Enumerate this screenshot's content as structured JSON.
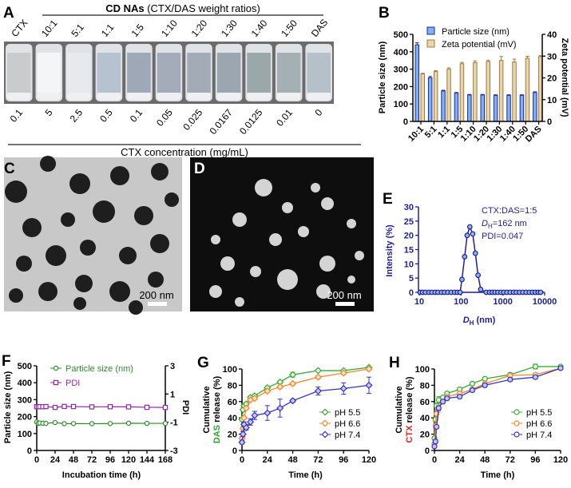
{
  "panels": {
    "A": {
      "label": "A",
      "header_bold": "CD NAs",
      "header_rest": " (CTX/DAS weight ratios)",
      "samples": [
        "CTX",
        "10:1",
        "5:1",
        "1:1",
        "1:5",
        "1:10",
        "1:20",
        "1:30",
        "1:40",
        "1:50",
        "DAS"
      ],
      "concentrations": [
        "0.1",
        "5",
        "2.5",
        "0.5",
        "0.1",
        "0.05",
        "0.025",
        "0.0167",
        "0.0125",
        "0.01",
        "0"
      ],
      "vial_colors": [
        "#c9cbcc",
        "#f3f5f7",
        "#e6eaee",
        "#b7c2d0",
        "#9ea8b6",
        "#a3acb8",
        "#a2abb6",
        "#9ca6b0",
        "#9aa8aa",
        "#a5b0b4",
        "#b6c0c8"
      ],
      "xlabel": "CTX concentration (mg/mL)"
    },
    "C": {
      "label": "C",
      "scale_bar": "200 nm"
    },
    "D": {
      "label": "D",
      "scale_bar": "200 nm"
    }
  },
  "chart_data": [
    {
      "panel": "B",
      "type": "bar",
      "categories": [
        "10:1",
        "5:1",
        "1:1",
        "1:5",
        "1:10",
        "1:20",
        "1:30",
        "1:40",
        "1:50",
        "DAS"
      ],
      "series": [
        {
          "name": "Particle size (nm)",
          "axis": "left",
          "values": [
            440,
            250,
            175,
            163,
            152,
            152,
            150,
            150,
            150,
            166
          ],
          "errors": [
            12,
            8,
            4,
            3,
            3,
            3,
            3,
            3,
            3,
            4
          ],
          "color": "#80b0f2",
          "edge": "#1c2a9c"
        },
        {
          "name": "Zeta potential (mV)",
          "axis": "right",
          "values": [
            21.8,
            22.9,
            24,
            26.5,
            27,
            27.5,
            28,
            27.3,
            29,
            29.8
          ],
          "errors": [
            0.3,
            0.4,
            0.6,
            0.6,
            0.8,
            0.6,
            1.8,
            1.3,
            0.9,
            0.4
          ],
          "color": "#e9d5ab",
          "edge": "#9d7b42"
        }
      ],
      "ylabel": "Particle size (nm)",
      "ylim": [
        0,
        500
      ],
      "yticks": [
        0,
        100,
        200,
        300,
        400,
        500
      ],
      "y2label": "Zeta potential (mV)",
      "y2lim": [
        0,
        40
      ],
      "y2ticks": [
        0,
        10,
        20,
        30,
        40
      ],
      "legend": "top"
    },
    {
      "panel": "E",
      "type": "line",
      "x_scale": "log",
      "x": [
        10.5,
        12,
        14,
        17,
        20,
        24,
        28,
        34,
        40,
        48,
        58,
        70,
        82,
        95,
        105,
        122,
        140,
        162,
        190,
        220,
        255,
        295,
        400,
        480,
        560,
        650,
        760,
        900,
        1050,
        1250,
        1500,
        1800,
        2100,
        2500,
        3000,
        3600,
        4300,
        5100,
        6000,
        7000,
        8000
      ],
      "series": [
        {
          "values": [
            0,
            0,
            0,
            0,
            0,
            0,
            0,
            0,
            0,
            0,
            0,
            0,
            0,
            0,
            4.5,
            12.5,
            20,
            23,
            20.5,
            13.7,
            6,
            1,
            0,
            0,
            0,
            0,
            0,
            0,
            0,
            0,
            0,
            0,
            0,
            0,
            0,
            0,
            0,
            0,
            0,
            0,
            0
          ],
          "color": "#1f1f8f",
          "marker_fill": "#8fb2f2"
        }
      ],
      "xlabel_main": "D",
      "xlabel_sub": "H",
      "xlabel_rest": " (nm)",
      "xlim": [
        10,
        10000
      ],
      "xticks": [
        "10",
        "100",
        "1000",
        "10000"
      ],
      "ylabel": "Intensity (%)",
      "ylim": [
        0,
        30
      ],
      "yticks": [
        0,
        5,
        10,
        15,
        20,
        25,
        30
      ],
      "annotation": {
        "line1": "CTX:DAS=1:5",
        "line2_main": "D",
        "line2_sub": "H",
        "line2_rest": "=162 nm",
        "line3": "PDI=0.047"
      }
    },
    {
      "panel": "F",
      "type": "line",
      "x": [
        0,
        2,
        4,
        8,
        12,
        24,
        36,
        48,
        72,
        96,
        120,
        144,
        168
      ],
      "series": [
        {
          "name": "Particle size (nm)",
          "axis": "left",
          "values": [
            168,
            160,
            162,
            161,
            160,
            165,
            158,
            159,
            158,
            159,
            161,
            160,
            160
          ],
          "color": "#2e8b2e",
          "marker": "circle"
        },
        {
          "name": "PDI",
          "axis": "right",
          "values": [
            0.1,
            0.1,
            0.1,
            0.1,
            0.11,
            0.05,
            0.12,
            0.11,
            0.09,
            0.1,
            0.09,
            0.06,
            0.05
          ],
          "color": "#8e2aa0",
          "marker": "square"
        }
      ],
      "xlabel": "Incubation time (h)",
      "xlim": [
        0,
        168
      ],
      "xticks": [
        0,
        24,
        48,
        72,
        96,
        120,
        144,
        168
      ],
      "ylabel": "Particle size (nm)",
      "ylim": [
        0,
        500
      ],
      "yticks": [
        0,
        100,
        200,
        300,
        400,
        500
      ],
      "y2label": "PDI",
      "y2lim": [
        -3,
        3
      ],
      "y2ticks": [
        -3,
        -1,
        1,
        3
      ],
      "legend": "top-left"
    },
    {
      "panel": "G",
      "type": "line",
      "x": [
        0,
        1,
        2,
        4,
        8,
        12,
        24,
        36,
        48,
        72,
        96,
        120
      ],
      "series": [
        {
          "name": "pH 5.5",
          "values": [
            38,
            50,
            55,
            57,
            65,
            67,
            77,
            84,
            93,
            98,
            98,
            102
          ],
          "errors": [
            2,
            2,
            2,
            2,
            2,
            2,
            2,
            2,
            3,
            1,
            1,
            1
          ],
          "color": "#3aa83a"
        },
        {
          "name": "pH 6.6",
          "values": [
            15,
            27,
            40,
            52,
            62,
            64,
            73,
            78,
            82,
            90,
            95,
            100
          ],
          "errors": [
            2,
            2,
            2,
            2,
            2,
            2,
            2,
            2,
            2,
            2,
            2,
            2
          ],
          "color": "#f0882c"
        },
        {
          "name": "pH 7.4",
          "values": [
            10,
            20,
            32,
            28,
            35,
            43,
            46,
            52,
            61,
            73,
            76,
            80
          ],
          "errors": [
            2,
            3,
            3,
            3,
            4,
            5,
            9,
            11,
            2,
            5,
            7,
            10
          ],
          "color": "#3434c4"
        }
      ],
      "xlabel": "Time (h)",
      "xlim": [
        0,
        120
      ],
      "xticks": [
        0,
        24,
        48,
        72,
        96,
        120
      ],
      "ylabel_line1": "Cumulative",
      "ylabel_drug": "DAS",
      "ylabel_rest": " release (%)",
      "drug_color": "#2aa82a",
      "ylim": [
        0,
        100
      ],
      "yticks": [
        0,
        20,
        40,
        60,
        80,
        100
      ],
      "legend": "bottom-right",
      "marker": "diamond"
    },
    {
      "panel": "H",
      "type": "line",
      "x": [
        0,
        1,
        2,
        4,
        8,
        12,
        24,
        36,
        48,
        72,
        96,
        120
      ],
      "series": [
        {
          "name": "pH 5.5",
          "values": [
            15,
            38,
            55,
            62,
            65,
            70,
            75,
            82,
            88,
            93,
            103,
            103
          ],
          "errors": [
            2,
            3,
            3,
            4,
            2,
            2,
            2,
            2,
            2,
            2,
            3,
            1
          ],
          "color": "#3aa83a"
        },
        {
          "name": "pH 6.6",
          "values": [
            8,
            30,
            45,
            52,
            60,
            66,
            70,
            75,
            82,
            92,
            93,
            101
          ],
          "errors": [
            2,
            3,
            4,
            5,
            3,
            2,
            2,
            2,
            2,
            2,
            2,
            1
          ],
          "color": "#f0882c"
        },
        {
          "name": "pH 7.4",
          "values": [
            5,
            11,
            29,
            52,
            60,
            64,
            66,
            74,
            80,
            87,
            90,
            101
          ],
          "errors": [
            1,
            2,
            2,
            3,
            2,
            2,
            2,
            2,
            2,
            2,
            2,
            1
          ],
          "color": "#3434c4"
        }
      ],
      "xlabel": "Time (h)",
      "xlim": [
        0,
        120
      ],
      "xticks": [
        0,
        24,
        48,
        72,
        96,
        120
      ],
      "ylabel_line1": "Cumulative",
      "ylabel_drug": "CTX",
      "ylabel_rest": " release (%)",
      "drug_color": "#e02020",
      "ylim": [
        0,
        100
      ],
      "yticks": [
        0,
        20,
        40,
        60,
        80,
        100
      ],
      "legend": "bottom-right",
      "marker": "circle"
    }
  ]
}
